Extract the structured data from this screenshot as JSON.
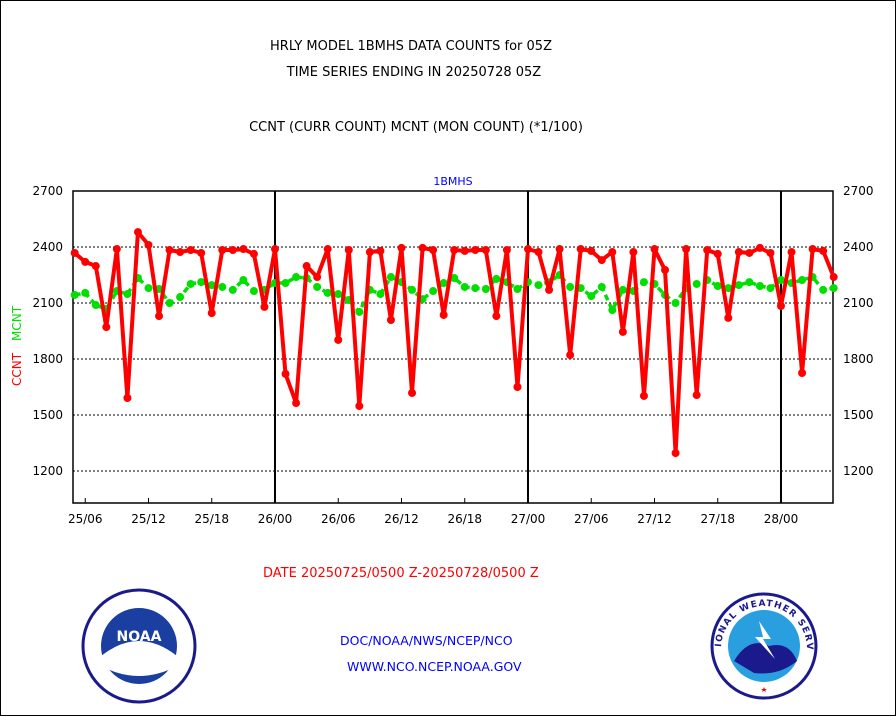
{
  "chart_data": {
    "type": "line",
    "title_lines": [
      "HRLY MODEL 1BMHS DATA COUNTS for 05Z",
      "TIME SERIES ENDING IN 20250728 05Z"
    ],
    "subtitle": "CCNT (CURR COUNT) MCNT (MON COUNT) (*1/100)",
    "panel_label": "1BMHS",
    "ylabel_ccnt": "CCNT",
    "ylabel_mcnt": "MCNT",
    "xlabel": "DATE 20250725/0500 Z-20250728/0500 Z",
    "ylim": [
      1030,
      2700
    ],
    "yticks": [
      1200,
      1500,
      1800,
      2100,
      2400,
      2700
    ],
    "x_start_hour_offset": 0,
    "hours": 73,
    "xticks": [
      {
        "label": "25/06",
        "hour": 1
      },
      {
        "label": "25/12",
        "hour": 7
      },
      {
        "label": "25/18",
        "hour": 13
      },
      {
        "label": "26/00",
        "hour": 19
      },
      {
        "label": "26/06",
        "hour": 25
      },
      {
        "label": "26/12",
        "hour": 31
      },
      {
        "label": "26/18",
        "hour": 37
      },
      {
        "label": "27/00",
        "hour": 43
      },
      {
        "label": "27/06",
        "hour": 49
      },
      {
        "label": "27/12",
        "hour": 55
      },
      {
        "label": "27/18",
        "hour": 61
      },
      {
        "label": "28/00",
        "hour": 67
      }
    ],
    "day_boundaries": [
      19,
      43,
      67
    ],
    "grid": true,
    "series": [
      {
        "name": "CCNT",
        "color": "#ff0000",
        "values": [
          2368,
          2320,
          2298,
          1971,
          2389,
          1591,
          2480,
          2411,
          2030,
          2384,
          2373,
          2384,
          2368,
          2046,
          2384,
          2384,
          2389,
          2363,
          2079,
          2389,
          1720,
          1564,
          2298,
          2239,
          2389,
          1902,
          2384,
          1548,
          2373,
          2379,
          2009,
          2395,
          1618,
          2395,
          2384,
          2036,
          2384,
          2379,
          2384,
          2384,
          2030,
          2384,
          1650,
          2389,
          2373,
          2170,
          2389,
          1821,
          2389,
          2379,
          2330,
          2373,
          1945,
          2373,
          1602,
          2389,
          2277,
          1296,
          2389,
          1607,
          2384,
          2363,
          2020,
          2373,
          2368,
          2395,
          2368,
          2084,
          2373,
          1725,
          2389,
          2379,
          2239
        ]
      },
      {
        "name": "MCNT",
        "color": "#00e000",
        "values": [
          2143,
          2154,
          2089,
          2068,
          2164,
          2148,
          2234,
          2180,
          2175,
          2100,
          2132,
          2202,
          2212,
          2196,
          2186,
          2170,
          2223,
          2164,
          2170,
          2207,
          2207,
          2239,
          2234,
          2186,
          2154,
          2148,
          2116,
          2052,
          2170,
          2148,
          2239,
          2212,
          2170,
          2121,
          2164,
          2207,
          2234,
          2186,
          2180,
          2175,
          2229,
          2212,
          2175,
          2212,
          2196,
          2212,
          2250,
          2186,
          2180,
          2137,
          2186,
          2062,
          2170,
          2164,
          2212,
          2202,
          2143,
          2100,
          2180,
          2202,
          2223,
          2191,
          2180,
          2196,
          2212,
          2191,
          2180,
          2223,
          2207,
          2223,
          2239,
          2170,
          2180
        ]
      }
    ]
  },
  "footer": {
    "line1": "DOC/NOAA/NWS/NCEP/NCO",
    "line2": "WWW.NCO.NCEP.NOAA.GOV",
    "noaa_logo_text": "NOAA",
    "nws_logo_text": "NATIONAL WEATHER SERVICE"
  }
}
